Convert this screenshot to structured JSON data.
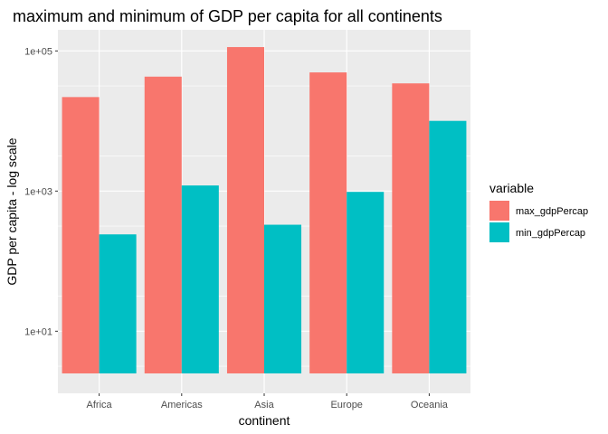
{
  "chart_data": {
    "type": "bar",
    "title": "maximum and minimum of GDP per capita for all continents",
    "xlabel": "continent",
    "ylabel": "GDP per capita - log scale",
    "y_scale": "log10",
    "ylim": [
      1.3,
      200000
    ],
    "y_ticks": [
      10,
      1000,
      100000
    ],
    "y_tick_labels": [
      "1e+01",
      "1e+03",
      "1e+05"
    ],
    "bar_base": 2.5,
    "grid": true,
    "legend_position": "right",
    "legend_title": "variable",
    "categories": [
      "Africa",
      "Americas",
      "Asia",
      "Europe",
      "Oceania"
    ],
    "series": [
      {
        "name": "max_gdpPercap",
        "color": "#F8766D",
        "values": [
          21951,
          42952,
          113523,
          49357,
          34435
        ]
      },
      {
        "name": "min_gdpPercap",
        "color": "#00BFC4",
        "values": [
          241,
          1202,
          331,
          974,
          10040
        ]
      }
    ]
  }
}
